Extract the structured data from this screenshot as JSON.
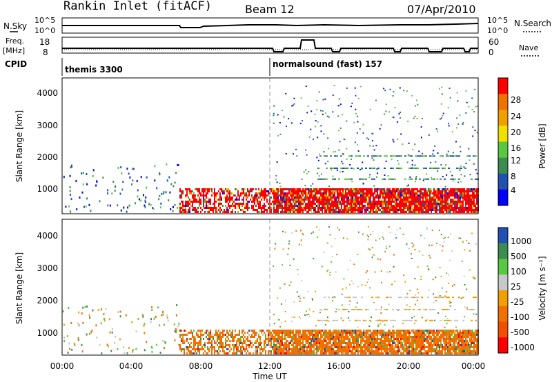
{
  "header": {
    "title": "Rankin Inlet (fitACF)",
    "beam": "Beam 12",
    "date": "07/Apr/2010"
  },
  "top_panel": {
    "left_label": "N.Sky",
    "left_ticks": [
      "10^5",
      "10^0"
    ],
    "right_label": "N.Search",
    "right_ticks": [
      "10^5",
      "10^0"
    ]
  },
  "freq_panel": {
    "left_label_1": "Freq.",
    "left_label_2": "[MHz]",
    "left_ticks": [
      "18",
      "8"
    ],
    "right_label": "Nave",
    "right_ticks": [
      "60",
      "0"
    ]
  },
  "cpid": {
    "label": "CPID",
    "programs": [
      "themis 3300",
      "normalsound (fast) 157"
    ]
  },
  "colors": {
    "power_scale": [
      "#0000ff",
      "#2050b0",
      "#3c8c50",
      "#58c840",
      "#f0e000",
      "#f0a000",
      "#f07000",
      "#ff0000"
    ],
    "velocity_scale": [
      "#ff0000",
      "#f05000",
      "#f07000",
      "#f0a000",
      "#c8c8c8",
      "#58c840",
      "#3c8c50",
      "#2050b0"
    ]
  },
  "chart_data": [
    {
      "type": "heatmap",
      "name": "power",
      "ylabel": "Slant Range [km]",
      "yticks": [
        "4000",
        "3000",
        "2000",
        "1000"
      ],
      "colorbar_label": "Power [dB]",
      "colorbar_ticks": [
        "28",
        "24",
        "20",
        "16",
        "12",
        "8",
        "4"
      ],
      "ylim": [
        180,
        4500
      ]
    },
    {
      "type": "heatmap",
      "name": "velocity",
      "ylabel": "Slant Range [km]",
      "yticks": [
        "4000",
        "3000",
        "2000",
        "1000"
      ],
      "colorbar_label": "Velocity  [m s⁻¹]",
      "colorbar_ticks": [
        "1000",
        "500",
        "100",
        "25",
        "-25",
        "-100",
        "-500",
        "-1000"
      ],
      "ylim": [
        180,
        4500
      ]
    }
  ],
  "x_axis": {
    "ticks": [
      "00:00",
      "04:00",
      "08:00",
      "12:00",
      "16:00",
      "20:00",
      "00:00"
    ],
    "label": "Time UT"
  }
}
